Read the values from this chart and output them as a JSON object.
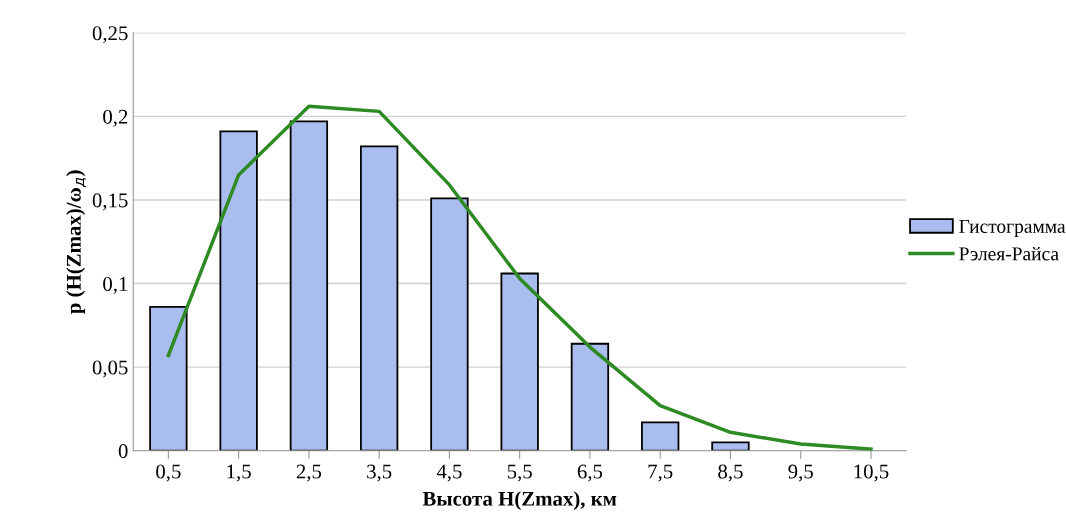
{
  "chart_data": {
    "type": "bar",
    "xlabel": "Высота H(Zmax), км",
    "ylabel": "p (H(Zmax)/ω$_{д}$)",
    "categories": [
      "0,5",
      "1,5",
      "2,5",
      "3,5",
      "4,5",
      "5,5",
      "6,5",
      "7,5",
      "8,5",
      "9,5",
      "10,5"
    ],
    "series": [
      {
        "name": "Гистограмма",
        "color": "#a9bdee",
        "values": [
          0.086,
          0.191,
          0.197,
          0.182,
          0.151,
          0.106,
          0.064,
          0.017,
          0.005,
          null,
          null
        ]
      },
      {
        "name": "Рэлея-Райса",
        "type": "line",
        "color": "#2e8b24",
        "values": [
          0.057,
          0.165,
          0.206,
          0.203,
          0.159,
          0.103,
          0.062,
          0.027,
          0.011,
          0.004,
          0.001
        ]
      }
    ],
    "ylim": [
      0,
      0.25
    ],
    "yticks": [
      0,
      {
        "value": 0.05,
        "label": "0,05"
      },
      {
        "value": 0.1,
        "label": "0,1"
      },
      {
        "value": 0.15,
        "label": "0,15"
      },
      {
        "value": 0.2,
        "label": "0,2"
      },
      {
        "value": 0.25,
        "label": "0,25"
      }
    ],
    "grid": "y",
    "legend": "right",
    "line_style": "solid",
    "marker": "none"
  }
}
